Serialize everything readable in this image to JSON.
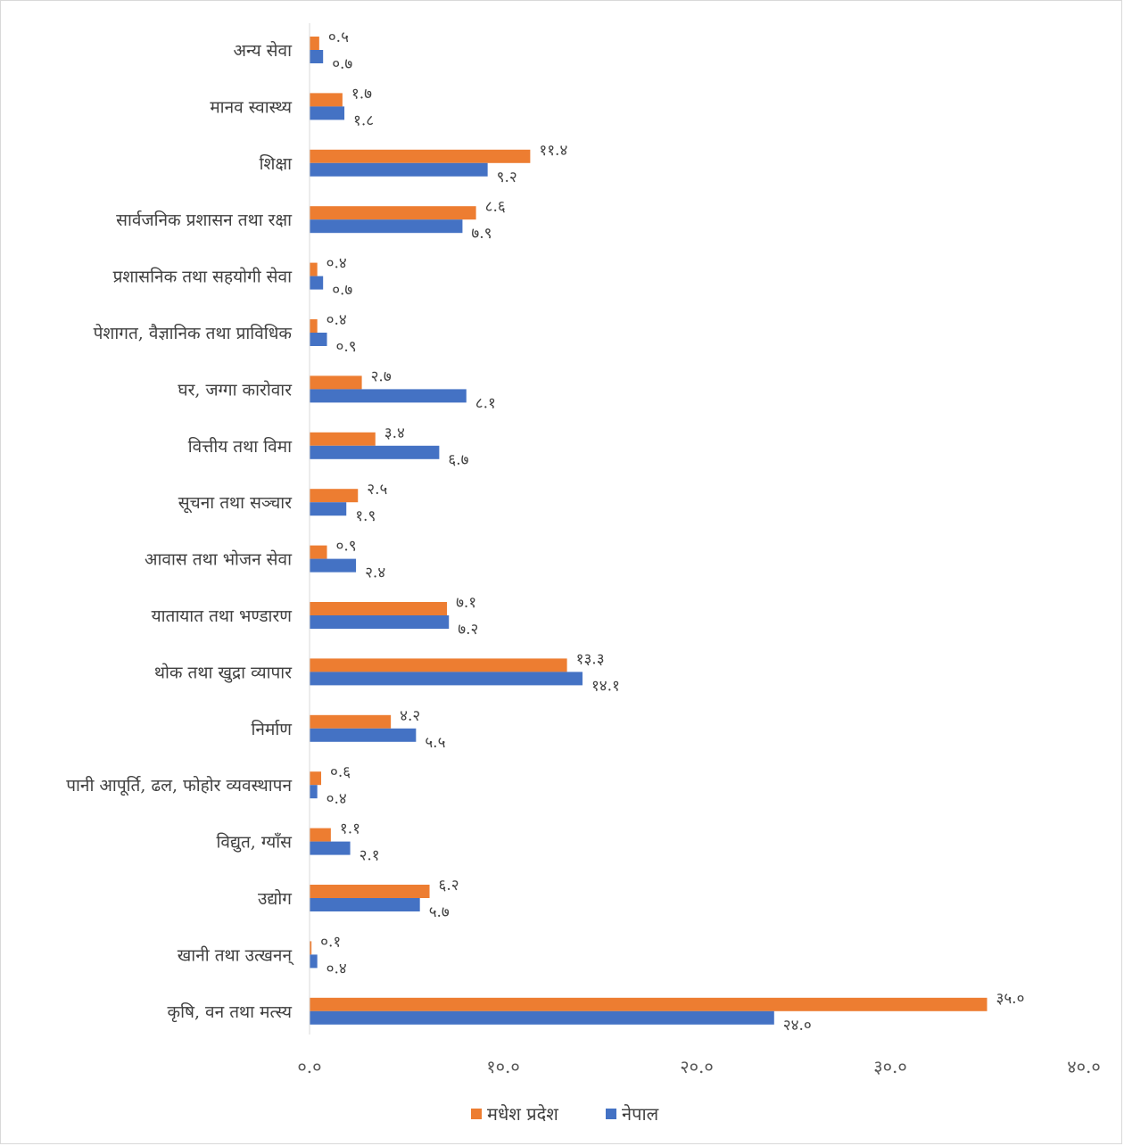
{
  "chart_data": {
    "type": "bar",
    "orientation": "horizontal",
    "title": "",
    "xlabel": "",
    "ylabel": "",
    "xlim": [
      0,
      40
    ],
    "x_ticks": [
      0,
      10,
      20,
      30,
      40
    ],
    "x_tick_labels": [
      "०.०",
      "१०.०",
      "२०.०",
      "३०.०",
      "४०.०"
    ],
    "grid": false,
    "legend_position": "bottom",
    "categories": [
      "अन्य सेवा",
      "मानव स्वास्थ्य",
      "शिक्षा",
      "सार्वजनिक प्रशासन तथा रक्षा",
      "प्रशासनिक तथा सहयोगी सेवा",
      "पेशागत, वैज्ञानिक तथा प्राविधिक",
      "घर, जग्गा कारोवार",
      "वित्तीय तथा विमा",
      "सूचना तथा सञ्चार",
      "आवास तथा भोजन सेवा",
      "यातायात तथा भण्डारण",
      "थोक तथा खुद्रा व्यापार",
      "निर्माण",
      "पानी आपूर्ति, ढल, फोहोर व्यवस्थापन",
      "विद्युत, ग्याँस",
      "उद्योग",
      "खानी तथा उत्खनन्",
      "कृषि, वन तथा मत्स्य"
    ],
    "series": [
      {
        "name": "मधेश प्रदेश",
        "color": "#ed7d31",
        "values": [
          0.5,
          1.7,
          11.4,
          8.6,
          0.4,
          0.4,
          2.7,
          3.4,
          2.5,
          0.9,
          7.1,
          13.3,
          4.2,
          0.6,
          1.1,
          6.2,
          0.1,
          35.0
        ],
        "labels": [
          "०.५",
          "१.७",
          "११.४",
          "८.६",
          "०.४",
          "०.४",
          "२.७",
          "३.४",
          "२.५",
          "०.९",
          "७.१",
          "१३.३",
          "४.२",
          "०.६",
          "१.१",
          "६.२",
          "०.१",
          "३५.०"
        ]
      },
      {
        "name": "नेपाल",
        "color": "#4472c4",
        "values": [
          0.7,
          1.8,
          9.2,
          7.9,
          0.7,
          0.9,
          8.1,
          6.7,
          1.9,
          2.4,
          7.2,
          14.1,
          5.5,
          0.4,
          2.1,
          5.7,
          0.4,
          24.0
        ],
        "labels": [
          "०.७",
          "१.८",
          "९.२",
          "७.९",
          "०.७",
          "०.९",
          "८.१",
          "६.७",
          "१.९",
          "२.४",
          "७.२",
          "१४.१",
          "५.५",
          "०.४",
          "२.१",
          "५.७",
          "०.४",
          "२४.०"
        ]
      }
    ]
  }
}
